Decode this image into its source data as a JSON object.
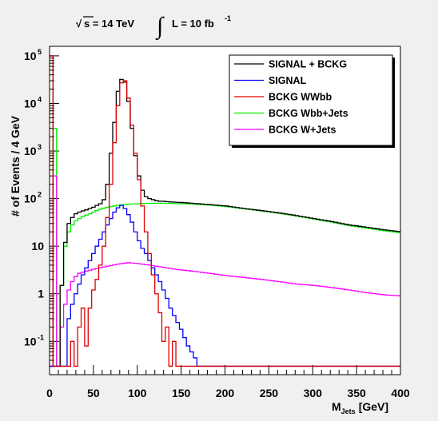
{
  "header": {
    "sqrt_s": "s = 14 TeV",
    "luminosity": "L = 10 fb",
    "lumi_exp": "-1"
  },
  "chart_data": {
    "type": "line",
    "style": "step-histogram",
    "xlabel": "M",
    "xlabel_sub": "Jets",
    "xlabel_unit": "[GeV]",
    "ylabel": "# of Events / 4 GeV",
    "xlim": [
      0,
      400
    ],
    "ylim_log10": [
      -1.7,
      5.2
    ],
    "yscale": "log",
    "x_ticks": [
      0,
      50,
      100,
      150,
      200,
      250,
      300,
      350,
      400
    ],
    "x_tick_labels": [
      "0",
      "50",
      "100",
      "150",
      "200",
      "250",
      "300",
      "350",
      "400"
    ],
    "y_ticks": [
      {
        "value": 0.1,
        "base": "10",
        "exp": "-1"
      },
      {
        "value": 1,
        "base": "1",
        "exp": ""
      },
      {
        "value": 10,
        "base": "10",
        "exp": ""
      },
      {
        "value": 100,
        "base": "10",
        "exp": "2"
      },
      {
        "value": 1000,
        "base": "10",
        "exp": "3"
      },
      {
        "value": 10000,
        "base": "10",
        "exp": "4"
      },
      {
        "value": 100000,
        "base": "10",
        "exp": "5"
      }
    ],
    "legend_position": "top-right",
    "series": [
      {
        "name": "SIGNAL + BCKG",
        "color": "#000000",
        "points": [
          [
            0,
            100000
          ],
          [
            4,
            0.03
          ],
          [
            8,
            0.03
          ],
          [
            12,
            1.5
          ],
          [
            16,
            12
          ],
          [
            20,
            30
          ],
          [
            24,
            40
          ],
          [
            28,
            48
          ],
          [
            32,
            52
          ],
          [
            36,
            55
          ],
          [
            40,
            58
          ],
          [
            44,
            62
          ],
          [
            48,
            66
          ],
          [
            52,
            72
          ],
          [
            56,
            78
          ],
          [
            60,
            95
          ],
          [
            64,
            200
          ],
          [
            68,
            900
          ],
          [
            72,
            4000
          ],
          [
            76,
            18000
          ],
          [
            80,
            32000
          ],
          [
            84,
            28000
          ],
          [
            88,
            11000
          ],
          [
            92,
            3000
          ],
          [
            96,
            800
          ],
          [
            100,
            300
          ],
          [
            104,
            150
          ],
          [
            108,
            110
          ],
          [
            112,
            100
          ],
          [
            116,
            95
          ],
          [
            120,
            90
          ],
          [
            124,
            88
          ],
          [
            128,
            88
          ],
          [
            136,
            85
          ],
          [
            148,
            83
          ],
          [
            160,
            80
          ],
          [
            180,
            75
          ],
          [
            200,
            70
          ],
          [
            220,
            62
          ],
          [
            240,
            56
          ],
          [
            260,
            50
          ],
          [
            280,
            44
          ],
          [
            300,
            38
          ],
          [
            320,
            33
          ],
          [
            340,
            28
          ],
          [
            360,
            25
          ],
          [
            380,
            22
          ],
          [
            400,
            20
          ]
        ]
      },
      {
        "name": "SIGNAL",
        "color": "#0000ff",
        "points": [
          [
            0,
            0.03
          ],
          [
            16,
            0.03
          ],
          [
            20,
            0.3
          ],
          [
            24,
            0.6
          ],
          [
            28,
            1.0
          ],
          [
            32,
            1.6
          ],
          [
            36,
            2.5
          ],
          [
            40,
            3.5
          ],
          [
            44,
            5
          ],
          [
            48,
            7
          ],
          [
            52,
            10
          ],
          [
            56,
            14
          ],
          [
            60,
            20
          ],
          [
            64,
            28
          ],
          [
            68,
            38
          ],
          [
            72,
            52
          ],
          [
            76,
            64
          ],
          [
            80,
            72
          ],
          [
            84,
            62
          ],
          [
            88,
            46
          ],
          [
            92,
            32
          ],
          [
            96,
            20
          ],
          [
            100,
            13
          ],
          [
            104,
            9
          ],
          [
            108,
            7
          ],
          [
            112,
            5
          ],
          [
            116,
            3.5
          ],
          [
            120,
            2.5
          ],
          [
            124,
            1.8
          ],
          [
            128,
            1.2
          ],
          [
            132,
            0.8
          ],
          [
            136,
            0.5
          ],
          [
            140,
            0.35
          ],
          [
            144,
            0.25
          ],
          [
            148,
            0.18
          ],
          [
            152,
            0.12
          ],
          [
            156,
            0.08
          ],
          [
            160,
            0.06
          ],
          [
            164,
            0.045
          ],
          [
            168,
            0.03
          ],
          [
            400,
            0.03
          ]
        ]
      },
      {
        "name": "BCKG WWbb",
        "color": "#dd0000",
        "points": [
          [
            0,
            100000
          ],
          [
            4,
            0.03
          ],
          [
            20,
            0.03
          ],
          [
            24,
            0.1
          ],
          [
            28,
            0.03
          ],
          [
            32,
            0.2
          ],
          [
            36,
            0.5
          ],
          [
            40,
            0.08
          ],
          [
            44,
            0.5
          ],
          [
            48,
            1.2
          ],
          [
            52,
            2
          ],
          [
            56,
            4
          ],
          [
            60,
            10
          ],
          [
            64,
            40
          ],
          [
            68,
            200
          ],
          [
            72,
            1500
          ],
          [
            76,
            9000
          ],
          [
            80,
            27000
          ],
          [
            84,
            30000
          ],
          [
            88,
            13000
          ],
          [
            92,
            3500
          ],
          [
            96,
            900
          ],
          [
            100,
            250
          ],
          [
            104,
            70
          ],
          [
            108,
            20
          ],
          [
            112,
            7
          ],
          [
            116,
            2.5
          ],
          [
            120,
            1
          ],
          [
            124,
            0.4
          ],
          [
            128,
            0.1
          ],
          [
            132,
            0.2
          ],
          [
            136,
            0.03
          ],
          [
            140,
            0.1
          ],
          [
            144,
            0.03
          ],
          [
            400,
            0.03
          ]
        ]
      },
      {
        "name": "BCKG Wbb+Jets",
        "color": "#00ee00",
        "points": [
          [
            0,
            0.03
          ],
          [
            4,
            3000
          ],
          [
            8,
            0.03
          ],
          [
            12,
            1.5
          ],
          [
            16,
            10
          ],
          [
            20,
            20
          ],
          [
            24,
            28
          ],
          [
            28,
            34
          ],
          [
            32,
            38
          ],
          [
            36,
            42
          ],
          [
            40,
            45
          ],
          [
            44,
            48
          ],
          [
            48,
            52
          ],
          [
            52,
            56
          ],
          [
            56,
            60
          ],
          [
            60,
            63
          ],
          [
            64,
            66
          ],
          [
            72,
            70
          ],
          [
            80,
            74
          ],
          [
            92,
            77
          ],
          [
            104,
            79
          ],
          [
            116,
            80
          ],
          [
            128,
            80
          ],
          [
            140,
            79
          ],
          [
            160,
            77
          ],
          [
            180,
            73
          ],
          [
            200,
            68
          ],
          [
            220,
            61
          ],
          [
            240,
            55
          ],
          [
            260,
            49
          ],
          [
            280,
            43
          ],
          [
            300,
            37
          ],
          [
            320,
            32
          ],
          [
            340,
            27
          ],
          [
            360,
            24
          ],
          [
            380,
            21
          ],
          [
            400,
            19
          ]
        ]
      },
      {
        "name": "BCKG W+Jets",
        "color": "#ff00ff",
        "points": [
          [
            0,
            0.03
          ],
          [
            4,
            300
          ],
          [
            8,
            0.03
          ],
          [
            12,
            0.2
          ],
          [
            16,
            0.6
          ],
          [
            20,
            1.2
          ],
          [
            24,
            1.8
          ],
          [
            28,
            2.3
          ],
          [
            32,
            2.7
          ],
          [
            40,
            3.0
          ],
          [
            52,
            3.4
          ],
          [
            64,
            3.8
          ],
          [
            76,
            4.2
          ],
          [
            88,
            4.5
          ],
          [
            100,
            4.3
          ],
          [
            112,
            4.0
          ],
          [
            124,
            3.7
          ],
          [
            140,
            3.3
          ],
          [
            160,
            3.0
          ],
          [
            180,
            2.7
          ],
          [
            200,
            2.4
          ],
          [
            220,
            2.2
          ],
          [
            240,
            2.0
          ],
          [
            260,
            1.8
          ],
          [
            280,
            1.6
          ],
          [
            300,
            1.5
          ],
          [
            320,
            1.35
          ],
          [
            340,
            1.2
          ],
          [
            360,
            1.05
          ],
          [
            380,
            0.95
          ],
          [
            400,
            0.9
          ]
        ]
      }
    ]
  }
}
